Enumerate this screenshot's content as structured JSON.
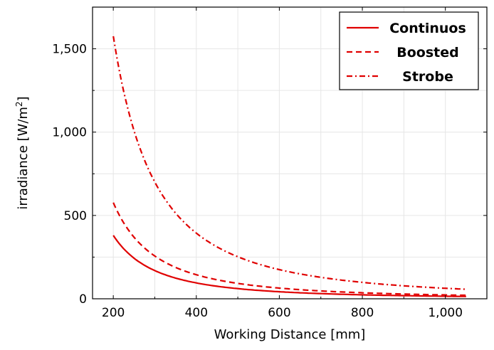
{
  "chart_data": {
    "type": "line",
    "title": "",
    "xlabel": "Working Distance [mm]",
    "ylabel": "irradiance [W/m",
    "ylabel_sup": "2",
    "ylabel_close": "]",
    "xlim": [
      150,
      1100
    ],
    "ylim": [
      0,
      1750
    ],
    "xticks": [
      200,
      400,
      600,
      800,
      1000
    ],
    "xtick_labels": [
      "200",
      "400",
      "600",
      "800",
      "1,000"
    ],
    "yticks": [
      0,
      500,
      1000,
      1500
    ],
    "ytick_labels": [
      "0",
      "500",
      "1,000",
      "1,500"
    ],
    "grid": true,
    "legend_position": "top-right",
    "series": [
      {
        "name": "Continuos",
        "style": "solid",
        "color": "#e00000",
        "x": [
          200,
          250,
          300,
          350,
          400,
          450,
          500,
          550,
          600,
          650,
          700,
          750,
          800,
          850,
          900,
          950,
          1000,
          1050
        ],
        "y": [
          375,
          240,
          167,
          122,
          94,
          74,
          60,
          50,
          42,
          35,
          31,
          27,
          23,
          21,
          19,
          17,
          15,
          14
        ]
      },
      {
        "name": "Boosted",
        "style": "dashed",
        "color": "#e00000",
        "x": [
          200,
          250,
          300,
          350,
          400,
          450,
          500,
          550,
          600,
          650,
          700,
          750,
          800,
          850,
          900,
          950,
          1000,
          1050
        ],
        "y": [
          575,
          368,
          256,
          188,
          144,
          114,
          92,
          76,
          64,
          54,
          47,
          41,
          36,
          32,
          28,
          25,
          23,
          21
        ]
      },
      {
        "name": "Strobe",
        "style": "dashdot",
        "color": "#e00000",
        "x": [
          200,
          250,
          300,
          350,
          400,
          450,
          500,
          550,
          600,
          650,
          700,
          750,
          800,
          850,
          900,
          950,
          1000,
          1050
        ],
        "y": [
          1580,
          1011,
          702,
          516,
          395,
          312,
          253,
          209,
          176,
          150,
          129,
          112,
          99,
          87,
          78,
          70,
          63,
          57
        ]
      }
    ]
  }
}
